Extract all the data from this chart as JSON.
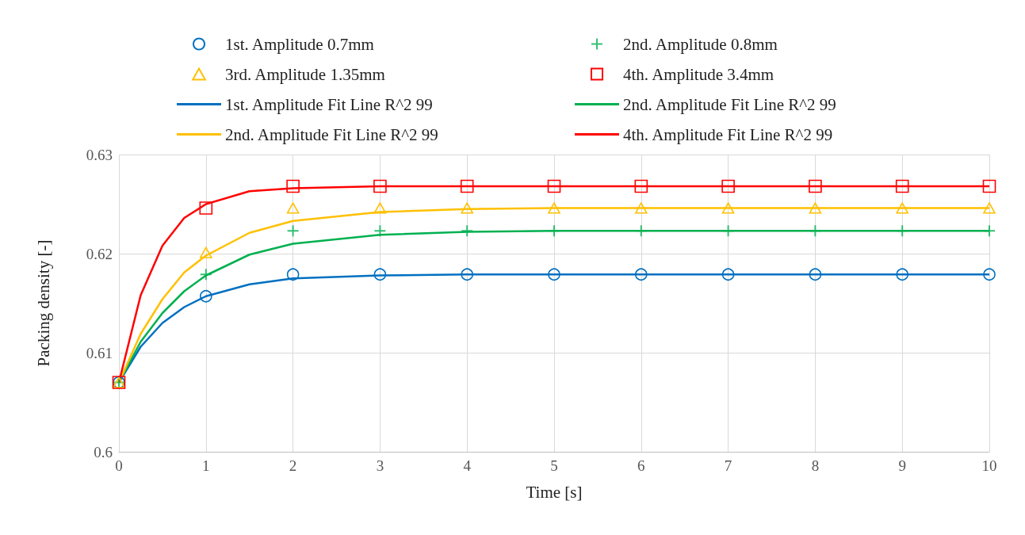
{
  "chart_data": {
    "type": "scatter",
    "xlabel": "Time [s]",
    "ylabel": "Packing density [-]",
    "xlim": [
      0,
      10
    ],
    "xticks": [
      0,
      1,
      2,
      3,
      4,
      5,
      6,
      7,
      8,
      9,
      10
    ],
    "ylim": [
      0.6,
      0.63
    ],
    "yticks": [
      0.6,
      0.61,
      0.62,
      0.63
    ],
    "grid": true,
    "legend": "top",
    "series": [
      {
        "name": "1st. Amplitude 0.7mm",
        "marker": "circle",
        "color": "#0070c0",
        "x": [
          0,
          1,
          2,
          3,
          4,
          5,
          6,
          7,
          8,
          9,
          10
        ],
        "values": [
          0.607,
          0.6157,
          0.6179,
          0.6179,
          0.6179,
          0.6179,
          0.6179,
          0.6179,
          0.6179,
          0.6179,
          0.6179
        ]
      },
      {
        "name": "2nd. Amplitude 0.8mm",
        "marker": "cross",
        "color": "#00b050",
        "x": [
          0,
          1,
          2,
          3,
          4,
          5,
          6,
          7,
          8,
          9,
          10
        ],
        "values": [
          0.607,
          0.6179,
          0.6223,
          0.6223,
          0.6223,
          0.6223,
          0.6223,
          0.6223,
          0.6223,
          0.6223,
          0.6223
        ]
      },
      {
        "name": "3rd. Amplitude 1.35mm",
        "marker": "triangle",
        "color": "#ffc000",
        "x": [
          0,
          1,
          2,
          3,
          4,
          5,
          6,
          7,
          8,
          9,
          10
        ],
        "values": [
          0.607,
          0.6201,
          0.6246,
          0.6246,
          0.6246,
          0.6246,
          0.6246,
          0.6246,
          0.6246,
          0.6246,
          0.6246
        ]
      },
      {
        "name": "4th. Amplitude 3.4mm",
        "marker": "square",
        "color": "#ff0000",
        "x": [
          0,
          1,
          2,
          3,
          4,
          5,
          6,
          7,
          8,
          9,
          10
        ],
        "values": [
          0.607,
          0.6246,
          0.6268,
          0.6268,
          0.6268,
          0.6268,
          0.6268,
          0.6268,
          0.6268,
          0.6268,
          0.6268
        ]
      },
      {
        "name": "1st. Amplitude Fit Line R^2 99",
        "type": "line",
        "color": "#0070c0",
        "x": [
          0,
          0.25,
          0.5,
          0.75,
          1,
          1.5,
          2,
          3,
          4,
          5,
          6,
          7,
          8,
          9,
          10
        ],
        "values": [
          0.607,
          0.6106,
          0.613,
          0.6146,
          0.6157,
          0.6169,
          0.6175,
          0.6178,
          0.6179,
          0.6179,
          0.6179,
          0.6179,
          0.6179,
          0.6179,
          0.6179
        ]
      },
      {
        "name": "2nd. Amplitude Fit Line R^2 99",
        "type": "line",
        "color": "#00b050",
        "x": [
          0,
          0.25,
          0.5,
          0.75,
          1,
          1.5,
          2,
          3,
          4,
          5,
          6,
          7,
          8,
          9,
          10
        ],
        "values": [
          0.607,
          0.6111,
          0.614,
          0.6162,
          0.6178,
          0.6199,
          0.621,
          0.6219,
          0.6222,
          0.6223,
          0.6223,
          0.6223,
          0.6223,
          0.6223,
          0.6223
        ]
      },
      {
        "name": "2nd. Amplitude Fit Line R^2 99",
        "type": "line",
        "color": "#ffc000",
        "x": [
          0,
          0.25,
          0.5,
          0.75,
          1,
          1.5,
          2,
          3,
          4,
          5,
          6,
          7,
          8,
          9,
          10
        ],
        "values": [
          0.607,
          0.6119,
          0.6154,
          0.6181,
          0.6198,
          0.6221,
          0.6233,
          0.6242,
          0.6245,
          0.6246,
          0.6246,
          0.6246,
          0.6246,
          0.6246,
          0.6246
        ]
      },
      {
        "name": "4th. Amplitude Fit Line R^2 99",
        "type": "line",
        "color": "#ff0000",
        "x": [
          0,
          0.25,
          0.5,
          0.75,
          1,
          1.5,
          2,
          3,
          4,
          5,
          6,
          7,
          8,
          9,
          10
        ],
        "values": [
          0.607,
          0.6158,
          0.6208,
          0.6236,
          0.625,
          0.6263,
          0.6266,
          0.6268,
          0.6268,
          0.6268,
          0.6268,
          0.6268,
          0.6268,
          0.6268,
          0.6268
        ]
      }
    ]
  }
}
